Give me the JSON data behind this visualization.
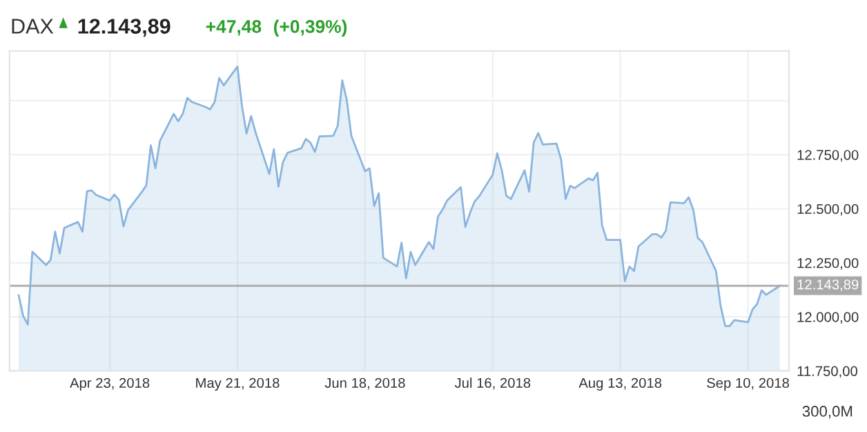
{
  "chart_data": {
    "type": "area",
    "title": "DAX",
    "annotations": [
      "12.143,89",
      "+47,48",
      "(+0,39%)",
      "300,0M"
    ],
    "x": [
      "2018-04-03",
      "2018-04-04",
      "2018-04-05",
      "2018-04-06",
      "2018-04-09",
      "2018-04-10",
      "2018-04-11",
      "2018-04-12",
      "2018-04-13",
      "2018-04-16",
      "2018-04-17",
      "2018-04-18",
      "2018-04-19",
      "2018-04-20",
      "2018-04-23",
      "2018-04-24",
      "2018-04-25",
      "2018-04-26",
      "2018-04-27",
      "2018-04-30",
      "2018-05-01",
      "2018-05-02",
      "2018-05-03",
      "2018-05-04",
      "2018-05-07",
      "2018-05-08",
      "2018-05-09",
      "2018-05-10",
      "2018-05-11",
      "2018-05-14",
      "2018-05-15",
      "2018-05-16",
      "2018-05-17",
      "2018-05-18",
      "2018-05-21",
      "2018-05-22",
      "2018-05-23",
      "2018-05-24",
      "2018-05-25",
      "2018-05-28",
      "2018-05-29",
      "2018-05-30",
      "2018-05-31",
      "2018-06-01",
      "2018-06-04",
      "2018-06-05",
      "2018-06-06",
      "2018-06-07",
      "2018-06-08",
      "2018-06-11",
      "2018-06-12",
      "2018-06-13",
      "2018-06-14",
      "2018-06-15",
      "2018-06-18",
      "2018-06-19",
      "2018-06-20",
      "2018-06-21",
      "2018-06-22",
      "2018-06-25",
      "2018-06-26",
      "2018-06-27",
      "2018-06-28",
      "2018-06-29",
      "2018-07-02",
      "2018-07-03",
      "2018-07-04",
      "2018-07-05",
      "2018-07-06",
      "2018-07-09",
      "2018-07-10",
      "2018-07-11",
      "2018-07-12",
      "2018-07-13",
      "2018-07-16",
      "2018-07-17",
      "2018-07-18",
      "2018-07-19",
      "2018-07-20",
      "2018-07-23",
      "2018-07-24",
      "2018-07-25",
      "2018-07-26",
      "2018-07-27",
      "2018-07-30",
      "2018-07-31",
      "2018-08-01",
      "2018-08-02",
      "2018-08-03",
      "2018-08-06",
      "2018-08-07",
      "2018-08-08",
      "2018-08-09",
      "2018-08-10",
      "2018-08-13",
      "2018-08-14",
      "2018-08-15",
      "2018-08-16",
      "2018-08-17",
      "2018-08-20",
      "2018-08-21",
      "2018-08-22",
      "2018-08-23",
      "2018-08-24",
      "2018-08-27",
      "2018-08-28",
      "2018-08-29",
      "2018-08-30",
      "2018-08-31",
      "2018-09-03",
      "2018-09-04",
      "2018-09-05",
      "2018-09-06",
      "2018-09-07",
      "2018-09-10",
      "2018-09-11",
      "2018-09-12",
      "2018-09-13",
      "2018-09-14",
      "2018-09-17"
    ],
    "series": [
      {
        "color": "#8ab4de",
        "values": [
          12100,
          12004,
          11964,
          12301,
          12240,
          12263,
          12394,
          12293,
          12411,
          12439,
          12394,
          12581,
          12585,
          12564,
          12538,
          12566,
          12541,
          12418,
          12494,
          12577,
          12608,
          12793,
          12687,
          12814,
          12939,
          12905,
          12939,
          13013,
          12994,
          12971,
          12960,
          12994,
          13105,
          13071,
          13158,
          12975,
          12848,
          12929,
          12852,
          12661,
          12776,
          12602,
          12717,
          12759,
          12780,
          12823,
          12806,
          12763,
          12835,
          12837,
          12884,
          13094,
          13001,
          12837,
          12674,
          12687,
          12513,
          12572,
          12273,
          12233,
          12343,
          12178,
          12301,
          12240,
          12346,
          12314,
          12464,
          12496,
          12538,
          12600,
          12416,
          12479,
          12532,
          12557,
          12657,
          12757,
          12678,
          12560,
          12545,
          12678,
          12579,
          12806,
          12850,
          12797,
          12801,
          12729,
          12545,
          12606,
          12596,
          12640,
          12632,
          12666,
          12424,
          12356,
          12356,
          12165,
          12233,
          12212,
          12326,
          12382,
          12382,
          12367,
          12399,
          12530,
          12526,
          12553,
          12496,
          12365,
          12346,
          12212,
          12051,
          11958,
          11958,
          11985,
          11975,
          12034,
          12059,
          12123,
          12102,
          12144
        ]
      }
    ],
    "xlim": [
      "2018-04-01",
      "2018-09-19"
    ],
    "xticks": [
      {
        "value": "2018-04-23",
        "label": "Apr 23, 2018"
      },
      {
        "value": "2018-05-21",
        "label": "May 21, 2018"
      },
      {
        "value": "2018-06-18",
        "label": "Jun 18, 2018"
      },
      {
        "value": "2018-07-16",
        "label": "Jul 16, 2018"
      },
      {
        "value": "2018-08-13",
        "label": "Aug 13, 2018"
      },
      {
        "value": "2018-09-10",
        "label": "Sep 10, 2018"
      }
    ],
    "ylim": [
      11750,
      13230
    ],
    "yticks": [
      {
        "value": 11750,
        "label": "11.750,00"
      },
      {
        "value": 12000,
        "label": "12.000,00"
      },
      {
        "value": 12250,
        "label": "12.250,00"
      },
      {
        "value": 12500,
        "label": "12.500,00"
      },
      {
        "value": 12750,
        "label": "12.750,00"
      },
      {
        "value": 13000,
        "label": null
      }
    ],
    "ref_lines": [
      {
        "axis": "y",
        "value": 12143.89,
        "label": "12.143,89",
        "color": "#a9a9a9"
      }
    ],
    "grid": true,
    "marker": "none",
    "line_style": "solid"
  }
}
